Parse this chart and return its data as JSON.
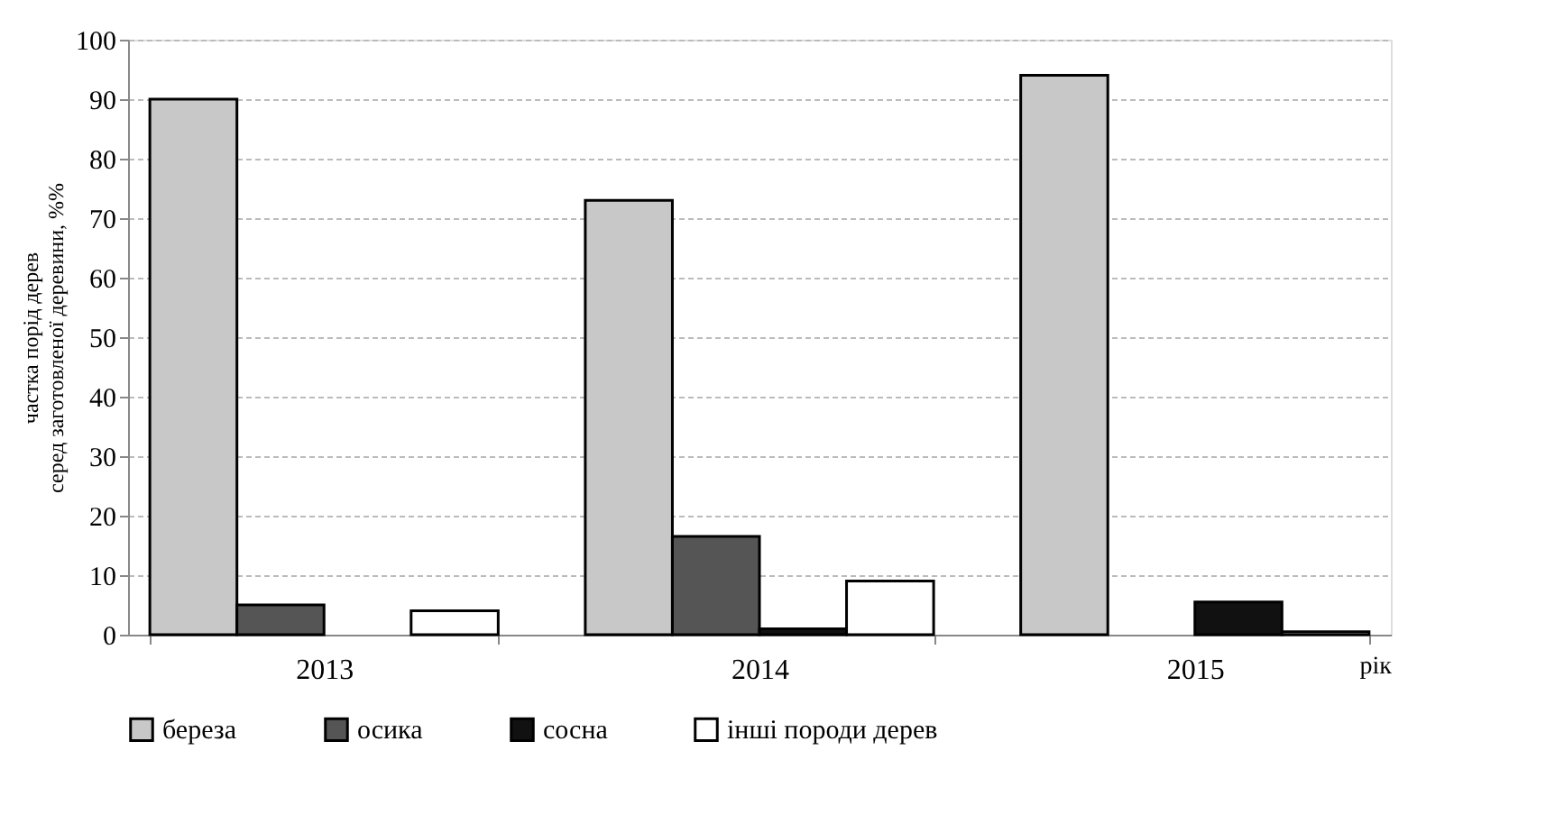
{
  "chart_data": {
    "type": "bar",
    "xlabel": "рік",
    "ylabel": "частка порід дерев\nсеред заготовленої деревини, %%",
    "categories": [
      "2013",
      "2014",
      "2015"
    ],
    "series": [
      {
        "name": "береза",
        "color": "#c8c8c8",
        "values": [
          90,
          73,
          94
        ]
      },
      {
        "name": "осика",
        "color": "#555555",
        "values": [
          5,
          16.5,
          null
        ]
      },
      {
        "name": "сосна",
        "color": "#111111",
        "values": [
          null,
          1,
          5.5
        ]
      },
      {
        "name": "інші породи дерев",
        "color": "#ffffff",
        "values": [
          4,
          9,
          0.5
        ]
      }
    ],
    "ylim": [
      0,
      100
    ],
    "yticks": [
      0,
      10,
      20,
      30,
      40,
      50,
      60,
      70,
      80,
      90,
      100
    ],
    "grid": "y",
    "legend": "bottom"
  }
}
